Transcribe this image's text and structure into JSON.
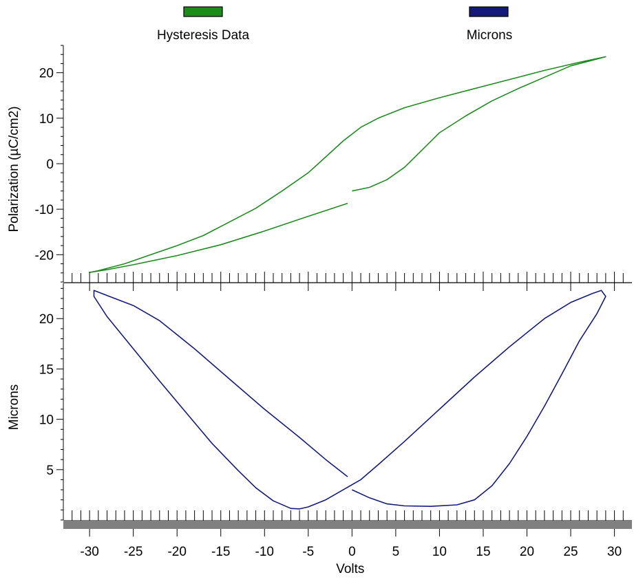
{
  "legend": {
    "placement": "top",
    "items": [
      {
        "label": "Hysteresis Data",
        "color": "#1f8a1f"
      },
      {
        "label": "Microns",
        "color": "#15197a"
      }
    ]
  },
  "chart_data": [
    {
      "type": "line",
      "xlim": [
        -33,
        32
      ],
      "ylim": [
        -26,
        26
      ],
      "yticks": [
        20,
        10,
        0,
        -10,
        -20
      ],
      "ylabel": "Polarization (µC/cm2)",
      "color": "#1f8a1f",
      "series": [
        {
          "name": "Hysteresis Data",
          "points": [
            [
              -0.5,
              -8.7
            ],
            [
              -3,
              -10.3
            ],
            [
              -6,
              -12.2
            ],
            [
              -10,
              -14.8
            ],
            [
              -15,
              -17.8
            ],
            [
              -20,
              -20.2
            ],
            [
              -25,
              -22.2
            ],
            [
              -28,
              -23.3
            ],
            [
              -30,
              -23.9
            ],
            [
              -29,
              -23.5
            ],
            [
              -26,
              -22
            ],
            [
              -23,
              -20
            ],
            [
              -20,
              -18
            ],
            [
              -17,
              -15.8
            ],
            [
              -14,
              -12.8
            ],
            [
              -11,
              -9.8
            ],
            [
              -8,
              -6
            ],
            [
              -5,
              -2
            ],
            [
              -3,
              1.5
            ],
            [
              -1,
              5
            ],
            [
              1,
              8
            ],
            [
              3,
              10
            ],
            [
              6,
              12.3
            ],
            [
              10,
              14.5
            ],
            [
              14,
              16.5
            ],
            [
              18,
              18.5
            ],
            [
              22,
              20.5
            ],
            [
              26,
              22.3
            ],
            [
              29,
              23.5
            ],
            [
              28,
              23
            ],
            [
              25,
              21.5
            ],
            [
              22,
              19
            ],
            [
              19,
              16.5
            ],
            [
              16,
              13.8
            ],
            [
              13,
              10.5
            ],
            [
              10,
              6.8
            ],
            [
              8,
              3
            ],
            [
              6,
              -0.8
            ],
            [
              4,
              -3.5
            ],
            [
              2,
              -5.2
            ],
            [
              0,
              -6
            ]
          ]
        }
      ]
    },
    {
      "type": "line",
      "xlim": [
        -33,
        32
      ],
      "ylim": [
        0,
        23.5
      ],
      "yticks": [
        20,
        15,
        10,
        5
      ],
      "ylabel": "Microns",
      "xlabel": "Volts",
      "xticks": [
        -30,
        -25,
        -20,
        -15,
        -10,
        -5,
        0,
        5,
        10,
        15,
        20,
        25,
        30
      ],
      "color": "#15197a",
      "series": [
        {
          "name": "Microns",
          "points": [
            [
              -0.5,
              4.3
            ],
            [
              -3,
              6
            ],
            [
              -6,
              8.2
            ],
            [
              -10,
              11
            ],
            [
              -14,
              14
            ],
            [
              -18,
              17
            ],
            [
              -22,
              19.8
            ],
            [
              -25,
              21.3
            ],
            [
              -28,
              22.3
            ],
            [
              -29.5,
              22.8
            ],
            [
              -29.5,
              22.2
            ],
            [
              -28,
              20.2
            ],
            [
              -25,
              17
            ],
            [
              -22,
              13.8
            ],
            [
              -19,
              10.7
            ],
            [
              -16,
              7.6
            ],
            [
              -13,
              4.9
            ],
            [
              -11,
              3.2
            ],
            [
              -9,
              1.9
            ],
            [
              -7,
              1.15
            ],
            [
              -6,
              1.1
            ],
            [
              -5,
              1.3
            ],
            [
              -3,
              2
            ],
            [
              -1,
              3
            ],
            [
              1,
              4
            ],
            [
              3,
              5.5
            ],
            [
              6,
              7.8
            ],
            [
              10,
              11
            ],
            [
              14,
              14.2
            ],
            [
              18,
              17.2
            ],
            [
              22,
              20
            ],
            [
              25,
              21.6
            ],
            [
              27.5,
              22.5
            ],
            [
              28.5,
              22.8
            ],
            [
              29,
              22.2
            ],
            [
              28,
              20.5
            ],
            [
              26,
              17.8
            ],
            [
              24,
              14.5
            ],
            [
              22,
              11.3
            ],
            [
              20,
              8.3
            ],
            [
              18,
              5.6
            ],
            [
              16,
              3.4
            ],
            [
              14,
              2
            ],
            [
              12,
              1.5
            ],
            [
              9,
              1.35
            ],
            [
              6,
              1.4
            ],
            [
              4,
              1.6
            ],
            [
              2,
              2.2
            ],
            [
              0,
              3
            ]
          ]
        }
      ]
    }
  ]
}
